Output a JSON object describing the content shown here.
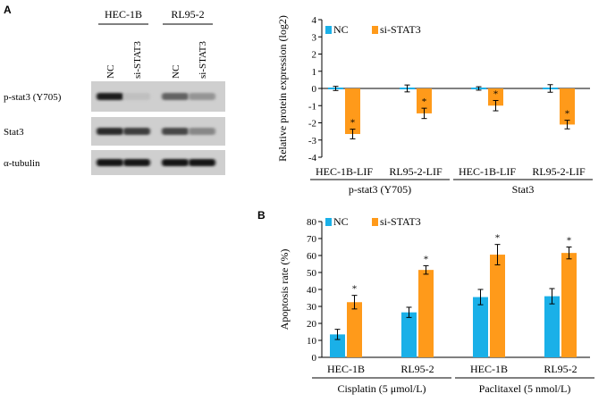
{
  "panel_labels": [
    "A",
    "B"
  ],
  "blot": {
    "cell_lines": [
      "HEC-1B",
      "RL95-2"
    ],
    "lanes": [
      "NC",
      "si-STAT3",
      "NC",
      "si-STAT3"
    ],
    "rows": [
      {
        "label": "p-stat3 (Y705)",
        "intensity": [
          0.92,
          0.05,
          0.55,
          0.28
        ]
      },
      {
        "label": "Stat3",
        "intensity": [
          0.85,
          0.75,
          0.7,
          0.35
        ]
      },
      {
        "label": "α-tubulin",
        "intensity": [
          0.95,
          0.95,
          0.95,
          0.95
        ]
      }
    ]
  },
  "colors": {
    "NC": "#1ab0e8",
    "si": "#ff9a1a"
  },
  "chart_data": [
    {
      "type": "bar",
      "panel": "A",
      "categories": [
        "HEC-1B-LIF",
        "RL95-2-LIF",
        "HEC-1B-LIF",
        "RL95-2-LIF"
      ],
      "groups": [
        {
          "label": "p-stat3 (Y705)",
          "categories": [
            0,
            1
          ]
        },
        {
          "label": "Stat3",
          "categories": [
            2,
            3
          ]
        }
      ],
      "series": [
        {
          "name": "NC",
          "values": [
            0,
            0,
            0,
            0
          ],
          "errors": [
            0.12,
            0.2,
            0.1,
            0.22
          ]
        },
        {
          "name": "si-STAT3",
          "values": [
            -2.65,
            -1.45,
            -1.0,
            -2.1
          ],
          "errors": [
            0.28,
            0.3,
            0.3,
            0.25
          ]
        }
      ],
      "significance": [
        "",
        "*",
        "",
        "*",
        "",
        "*",
        "",
        "*"
      ],
      "ylabel": "Relative protein expression (log2)",
      "ylim": [
        -4,
        4
      ],
      "yticks": [
        4,
        3,
        2,
        1,
        0,
        -1,
        -2,
        -3,
        -4
      ],
      "legend": {
        "position": "top-left",
        "entries": [
          "NC",
          "si-STAT3"
        ]
      }
    },
    {
      "type": "bar",
      "panel": "B",
      "categories": [
        "HEC-1B",
        "RL95-2",
        "HEC-1B",
        "RL95-2"
      ],
      "groups": [
        {
          "label": "Cisplatin (5 μmol/L)",
          "categories": [
            0,
            1
          ]
        },
        {
          "label": "Paclitaxel (5 nmol/L)",
          "categories": [
            2,
            3
          ]
        }
      ],
      "series": [
        {
          "name": "NC",
          "values": [
            13.5,
            26.5,
            35.5,
            36
          ],
          "errors": [
            3,
            3,
            4.5,
            4.5
          ]
        },
        {
          "name": "si-STAT3",
          "values": [
            32.5,
            51.5,
            60.5,
            61.5
          ],
          "errors": [
            4,
            2.5,
            6,
            3.5
          ]
        }
      ],
      "significance": [
        "",
        "*",
        "",
        "*",
        "",
        "*",
        "",
        "*"
      ],
      "ylabel": "Apoptosis rate (%)",
      "ylim": [
        0,
        80
      ],
      "yticks": [
        0,
        10,
        20,
        30,
        40,
        50,
        60,
        70,
        80
      ],
      "legend": {
        "position": "top-left",
        "entries": [
          "NC",
          "si-STAT3"
        ]
      }
    }
  ]
}
